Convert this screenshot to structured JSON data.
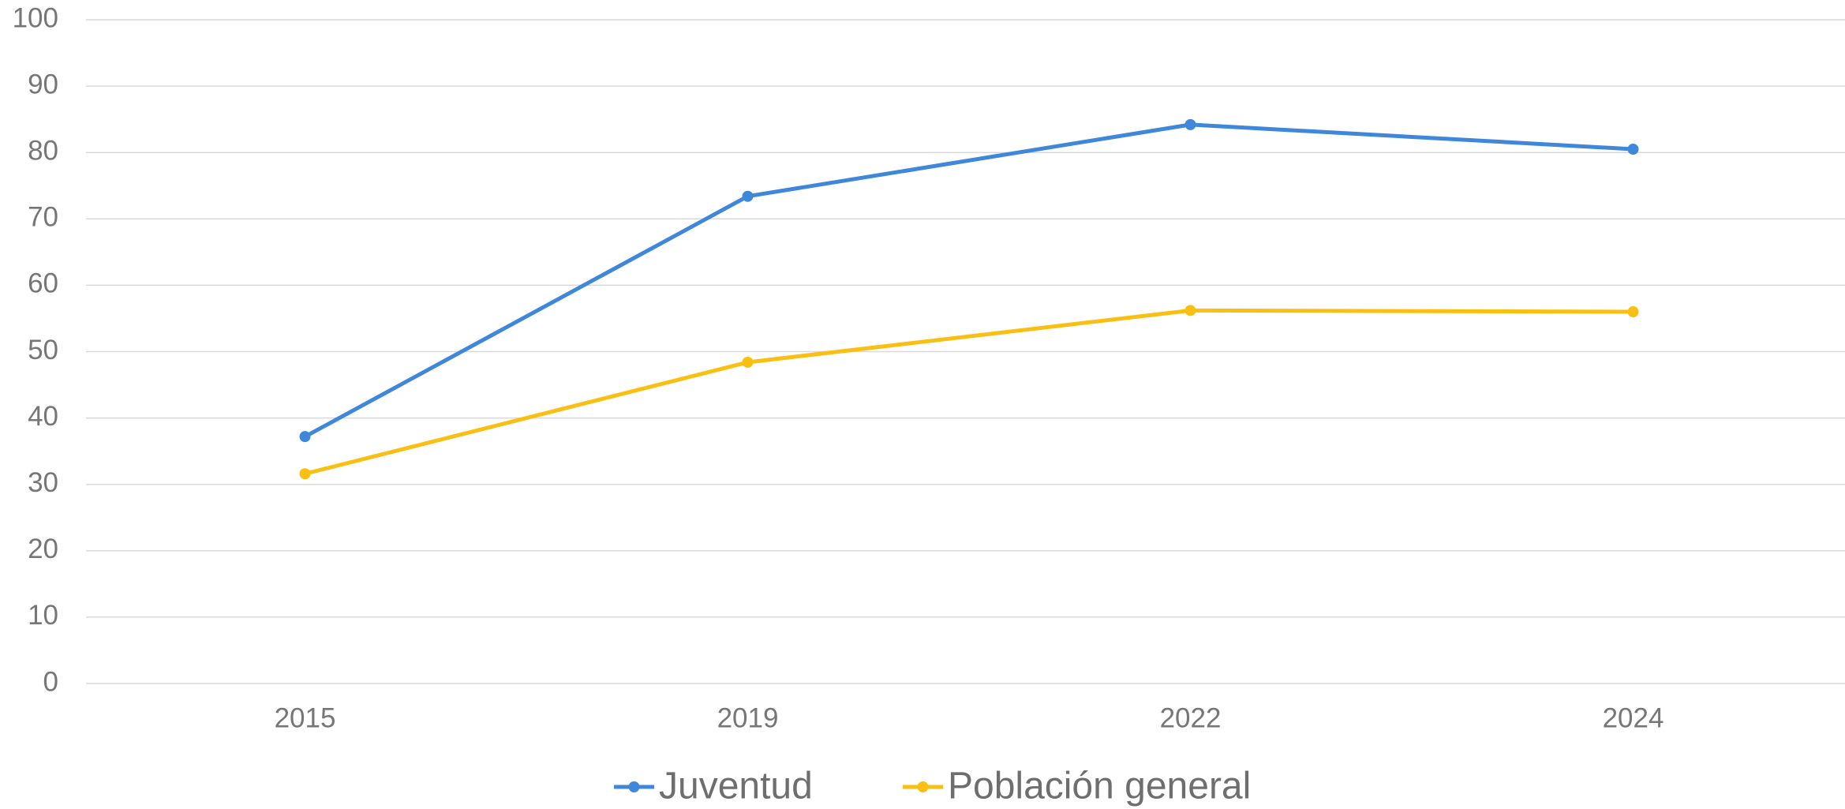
{
  "chart_data": {
    "type": "line",
    "categories": [
      "2015",
      "2019",
      "2022",
      "2024"
    ],
    "series": [
      {
        "name": "Juventud",
        "color": "#3f87db",
        "values": [
          37.2,
          73.4,
          84.2,
          80.5
        ]
      },
      {
        "name": "Población general",
        "color": "#f9c013",
        "values": [
          31.6,
          48.4,
          56.2,
          56.0
        ]
      }
    ],
    "ylim": [
      0,
      100
    ],
    "yticks": [
      0,
      10,
      20,
      30,
      40,
      50,
      60,
      70,
      80,
      90,
      100
    ],
    "grid": true,
    "legend": "bottom"
  }
}
